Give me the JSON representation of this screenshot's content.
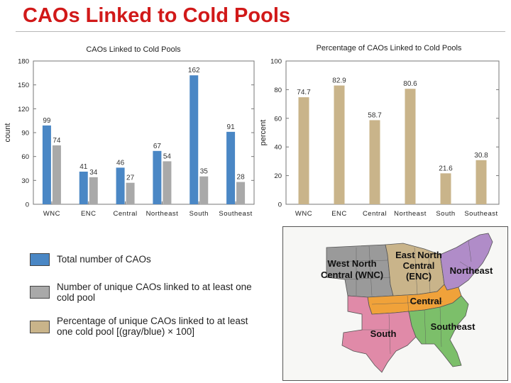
{
  "page": {
    "title": "CAOs Linked to Cold Pools"
  },
  "chart_data": [
    {
      "type": "bar",
      "title": "CAOs Linked to Cold Pools",
      "ylabel": "count",
      "xlabel": "",
      "ylim": [
        0,
        180
      ],
      "yticks": [
        0,
        30,
        60,
        90,
        120,
        150,
        180
      ],
      "categories": [
        "WNC",
        "ENC",
        "Central",
        "Northeast",
        "South",
        "Southeast"
      ],
      "series": [
        {
          "name": "Total number of CAOs",
          "color": "#4a87c5",
          "values": [
            99,
            41,
            46,
            67,
            162,
            91
          ]
        },
        {
          "name": "Number of unique CAOs linked to at least one cold pool",
          "color": "#a9a9a9",
          "values": [
            74,
            34,
            27,
            54,
            35,
            28
          ]
        }
      ]
    },
    {
      "type": "bar",
      "title": "Percentage of CAOs Linked to Cold Pools",
      "ylabel": "percent",
      "xlabel": "",
      "ylim": [
        0,
        100
      ],
      "yticks": [
        0,
        20,
        40,
        60,
        80,
        100
      ],
      "categories": [
        "WNC",
        "ENC",
        "Central",
        "Northeast",
        "South",
        "Southeast"
      ],
      "series": [
        {
          "name": "Percentage of unique CAOs linked to at least one cold pool [(gray/blue) × 100]",
          "color": "#c9b48a",
          "values": [
            74.7,
            82.9,
            58.7,
            80.6,
            21.6,
            30.8
          ]
        }
      ]
    }
  ],
  "legend": [
    {
      "label": "Total number of CAOs",
      "color": "#4a87c5"
    },
    {
      "label": "Number of unique CAOs linked to at least one cold pool",
      "color": "#a9a9a9"
    },
    {
      "label": "Percentage of unique CAOs linked to at least one cold pool [(gray/blue) × 100]",
      "color": "#c9b48a"
    }
  ],
  "map": {
    "regions": {
      "wnc": {
        "label": "West North Central (WNC)",
        "color": "#9a9a9a"
      },
      "enc": {
        "label": "East North Central (ENC)",
        "color": "#c9b48a"
      },
      "northeast": {
        "label": "Northeast",
        "color": "#b08cc8"
      },
      "central": {
        "label": "Central",
        "color": "#f0a23a"
      },
      "south": {
        "label": "South",
        "color": "#e08aa8"
      },
      "southeast": {
        "label": "Southeast",
        "color": "#7cbf6a"
      }
    }
  }
}
